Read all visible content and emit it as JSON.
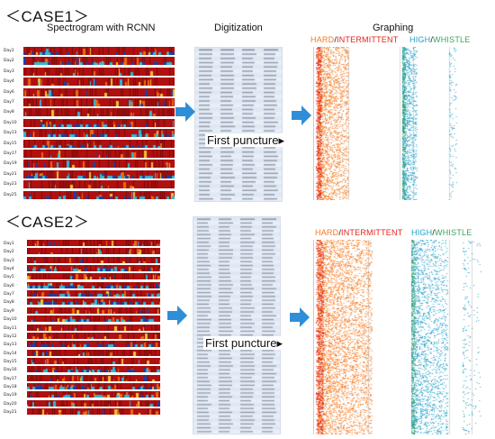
{
  "case1": {
    "title": "＜CASE1＞",
    "spectrogram_title": "Spectrogram with RCNN",
    "digitization_title": "Digitization",
    "graphing_title": "Graphing",
    "days": [
      "Day1",
      "Day2",
      "Day3",
      "Day4",
      "Day6",
      "Day7",
      "Day8",
      "Day10",
      "Day13",
      "Day15",
      "Day17",
      "Day19",
      "Day21",
      "Day23",
      "Day25"
    ],
    "puncture_label": "First puncture▸"
  },
  "case2": {
    "title": "＜CASE2＞",
    "days": [
      "Day1",
      "Day2",
      "Day3",
      "Day4",
      "Day5",
      "Day6",
      "Day7",
      "Day8",
      "Day9",
      "Day10",
      "Day11",
      "Day12",
      "Day13",
      "Day14",
      "Day15",
      "Day16",
      "Day17",
      "Day18",
      "Day19",
      "Day20",
      "Day21"
    ],
    "puncture_label": "First puncture▸"
  },
  "legend": {
    "hard": "HARD",
    "slash": "/",
    "intermittent": "INTERMITTENT",
    "high": "HIGH",
    "whistle": "WHISTLE"
  },
  "colors": {
    "spectro_red": "#b01010",
    "spectro_dark": "#7a0a0a",
    "spectro_orange": "#e96a10",
    "spectro_yellow": "#f2c230",
    "spectro_cyan": "#30b8d8",
    "spectro_blue": "#1d3fa0",
    "arrow": "#2f8ed8",
    "hard": "#f47a20",
    "intermittent": "#e2231a",
    "high": "#21a0c8",
    "whistle": "#3da35a"
  }
}
